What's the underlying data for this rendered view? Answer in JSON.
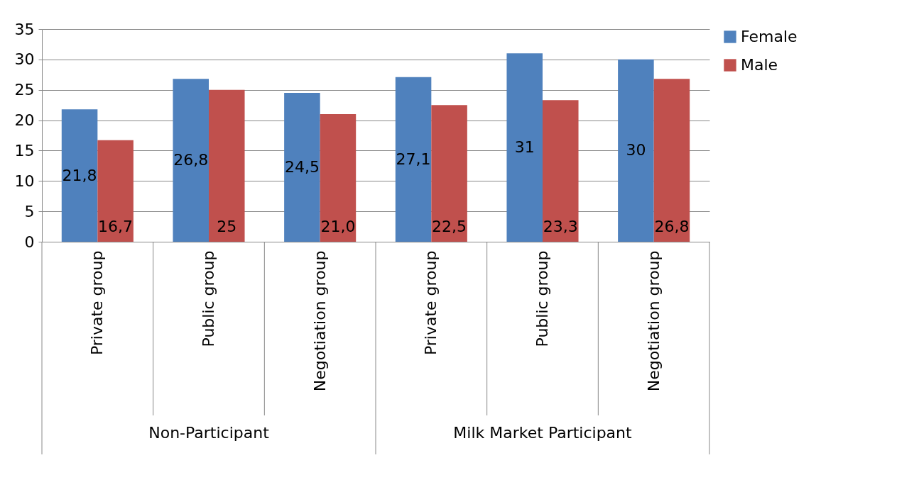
{
  "chart_data": {
    "type": "bar",
    "categories": [
      "Private group",
      "Public group",
      "Negotiation group",
      "Private group",
      "Public group",
      "Negotiation group"
    ],
    "series": [
      {
        "name": "Female",
        "color": "#4f81bd",
        "values": [
          21.8,
          26.8,
          24.5,
          27.1,
          31,
          30
        ],
        "value_labels": [
          "21,8",
          "26,8",
          "24,5",
          "27,1",
          "31",
          "30"
        ]
      },
      {
        "name": "Male",
        "color": "#c0504d",
        "values": [
          16.7,
          25,
          21.0,
          22.5,
          23.3,
          26.8
        ],
        "value_labels": [
          "16,7",
          "25",
          "21,0",
          "22,5",
          "23,3",
          "26,8"
        ]
      }
    ],
    "annotations": [
      "Non-Participant",
      "Milk Market Participant"
    ],
    "ylim": [
      0,
      35
    ],
    "yticks": [
      0,
      5,
      10,
      15,
      20,
      25,
      30,
      35
    ],
    "grid": "y",
    "legend": "right"
  }
}
